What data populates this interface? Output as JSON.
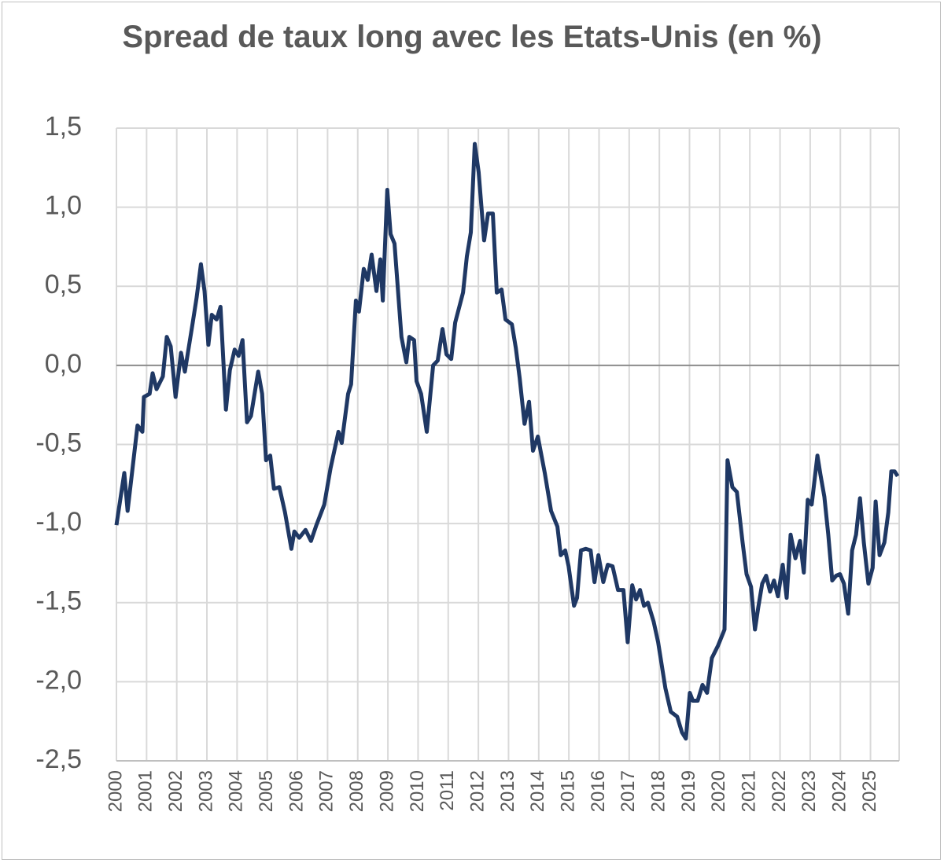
{
  "chart_data": {
    "type": "line",
    "title": "Spread de taux long avec les Etats-Unis (en %)",
    "xlim": [
      2000,
      2025.95
    ],
    "xticks": [
      2000,
      2001,
      2002,
      2003,
      2004,
      2005,
      2006,
      2007,
      2008,
      2009,
      2010,
      2011,
      2012,
      2013,
      2014,
      2015,
      2016,
      2017,
      2018,
      2019,
      2020,
      2021,
      2022,
      2023,
      2024,
      2025
    ],
    "ylim": [
      -2.5,
      1.5
    ],
    "yticks": [
      {
        "value": -2.5,
        "label": "-2,5"
      },
      {
        "value": -2,
        "label": "-2,0"
      },
      {
        "value": -1.5,
        "label": "-1,5"
      },
      {
        "value": -1,
        "label": "-1,0"
      },
      {
        "value": -0.5,
        "label": "-0,5"
      },
      {
        "value": 0,
        "label": "0,0"
      },
      {
        "value": 0.5,
        "label": "0,5"
      },
      {
        "value": 1,
        "label": "1,0"
      },
      {
        "value": 1.5,
        "label": "1,5"
      }
    ],
    "grid": true,
    "x": [
      2000.0,
      2000.26,
      2000.37,
      2000.7,
      2000.86,
      2000.91,
      2001.1,
      2001.2,
      2001.33,
      2001.54,
      2001.67,
      2001.8,
      2001.96,
      2002.14,
      2002.27,
      2002.53,
      2002.66,
      2002.8,
      2002.92,
      2003.05,
      2003.16,
      2003.32,
      2003.45,
      2003.63,
      2003.76,
      2003.92,
      2004.05,
      2004.18,
      2004.33,
      2004.46,
      2004.7,
      2004.83,
      2004.96,
      2005.1,
      2005.22,
      2005.4,
      2005.59,
      2005.8,
      2005.9,
      2006.06,
      2006.27,
      2006.45,
      2006.63,
      2006.89,
      2007.1,
      2007.36,
      2007.47,
      2007.68,
      2007.78,
      2007.94,
      2008.04,
      2008.2,
      2008.33,
      2008.46,
      2008.62,
      2008.75,
      2008.83,
      2008.98,
      2009.09,
      2009.22,
      2009.45,
      2009.61,
      2009.71,
      2009.87,
      2009.95,
      2010.1,
      2010.29,
      2010.5,
      2010.65,
      2010.81,
      2010.94,
      2011.1,
      2011.23,
      2011.49,
      2011.62,
      2011.75,
      2011.88,
      2012.01,
      2012.19,
      2012.32,
      2012.48,
      2012.61,
      2012.77,
      2012.9,
      2013.11,
      2013.24,
      2013.37,
      2013.53,
      2013.68,
      2013.81,
      2013.97,
      2014.2,
      2014.41,
      2014.62,
      2014.73,
      2014.88,
      2014.99,
      2015.17,
      2015.27,
      2015.4,
      2015.56,
      2015.72,
      2015.85,
      2015.98,
      2016.14,
      2016.29,
      2016.45,
      2016.63,
      2016.81,
      2016.95,
      2017.1,
      2017.23,
      2017.36,
      2017.49,
      2017.62,
      2017.81,
      2017.96,
      2018.2,
      2018.38,
      2018.59,
      2018.75,
      2018.88,
      2019.01,
      2019.11,
      2019.27,
      2019.43,
      2019.58,
      2019.74,
      2019.95,
      2020.16,
      2020.26,
      2020.42,
      2020.57,
      2020.76,
      2020.89,
      2021.04,
      2021.17,
      2021.28,
      2021.41,
      2021.54,
      2021.67,
      2021.8,
      2021.93,
      2022.09,
      2022.22,
      2022.35,
      2022.51,
      2022.66,
      2022.79,
      2022.92,
      2023.05,
      2023.24,
      2023.34,
      2023.47,
      2023.6,
      2023.73,
      2023.86,
      2023.99,
      2024.12,
      2024.26,
      2024.39,
      2024.52,
      2024.65,
      2024.78,
      2024.93,
      2025.07,
      2025.17,
      2025.3,
      2025.46,
      2025.59,
      2025.69,
      2025.8,
      2025.9
    ],
    "series": [
      {
        "color": "#1f3864",
        "values": [
          -1.01,
          -0.68,
          -0.92,
          -0.38,
          -0.42,
          -0.2,
          -0.18,
          -0.05,
          -0.15,
          -0.07,
          0.18,
          0.12,
          -0.2,
          0.08,
          -0.04,
          0.27,
          0.43,
          0.64,
          0.47,
          0.13,
          0.32,
          0.29,
          0.37,
          -0.28,
          -0.03,
          0.1,
          0.06,
          0.16,
          -0.36,
          -0.32,
          -0.04,
          -0.18,
          -0.6,
          -0.57,
          -0.78,
          -0.77,
          -0.93,
          -1.16,
          -1.05,
          -1.09,
          -1.04,
          -1.11,
          -1.01,
          -0.88,
          -0.65,
          -0.42,
          -0.49,
          -0.18,
          -0.12,
          0.41,
          0.34,
          0.61,
          0.54,
          0.7,
          0.47,
          0.67,
          0.41,
          1.11,
          0.83,
          0.77,
          0.18,
          0.02,
          0.18,
          0.16,
          -0.1,
          -0.18,
          -0.42,
          0.0,
          0.03,
          0.23,
          0.07,
          0.04,
          0.27,
          0.46,
          0.69,
          0.84,
          1.4,
          1.22,
          0.79,
          0.96,
          0.96,
          0.46,
          0.48,
          0.29,
          0.26,
          0.11,
          -0.08,
          -0.37,
          -0.23,
          -0.54,
          -0.45,
          -0.68,
          -0.92,
          -1.02,
          -1.2,
          -1.17,
          -1.27,
          -1.52,
          -1.47,
          -1.17,
          -1.16,
          -1.17,
          -1.37,
          -1.2,
          -1.37,
          -1.26,
          -1.27,
          -1.42,
          -1.42,
          -1.75,
          -1.39,
          -1.48,
          -1.42,
          -1.52,
          -1.5,
          -1.62,
          -1.75,
          -2.04,
          -2.19,
          -2.22,
          -2.32,
          -2.36,
          -2.07,
          -2.12,
          -2.12,
          -2.02,
          -2.07,
          -1.85,
          -1.77,
          -1.67,
          -0.6,
          -0.77,
          -0.8,
          -1.12,
          -1.32,
          -1.4,
          -1.67,
          -1.53,
          -1.38,
          -1.33,
          -1.43,
          -1.36,
          -1.46,
          -1.26,
          -1.47,
          -1.07,
          -1.22,
          -1.11,
          -1.31,
          -0.85,
          -0.88,
          -0.57,
          -0.69,
          -0.83,
          -1.07,
          -1.36,
          -1.33,
          -1.32,
          -1.38,
          -1.57,
          -1.17,
          -1.07,
          -0.84,
          -1.12,
          -1.38,
          -1.28,
          -0.86,
          -1.2,
          -1.12,
          -0.93,
          -0.67,
          -0.67,
          -0.7
        ]
      }
    ]
  }
}
